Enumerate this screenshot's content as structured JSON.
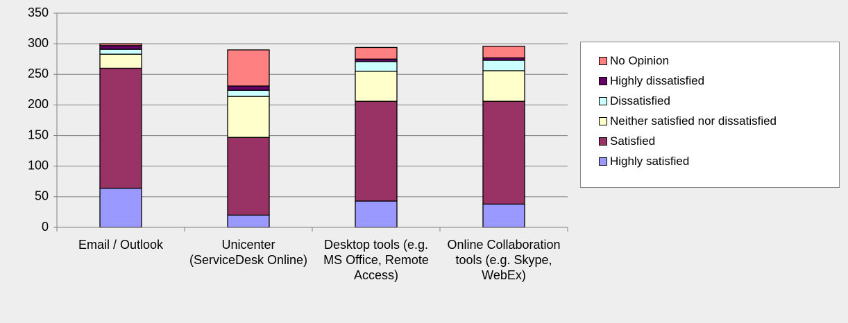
{
  "chart_data": {
    "type": "stacked_bar",
    "categories": [
      "Email / Outlook",
      "Unicenter (ServiceDesk Online)",
      "Desktop tools (e.g. MS Office, Remote Access)",
      "Online Collaboration tools (e.g. Skype, WebEx)"
    ],
    "series": [
      {
        "name": "Highly satisfied",
        "color": "#9999ff",
        "values": [
          64,
          20,
          43,
          38
        ]
      },
      {
        "name": "Satisfied",
        "color": "#993366",
        "values": [
          196,
          127,
          163,
          168
        ]
      },
      {
        "name": "Neither satisfied nor dissatisfied",
        "color": "#ffffcc",
        "values": [
          23,
          67,
          49,
          50
        ]
      },
      {
        "name": "Dissatisfied",
        "color": "#ccffff",
        "values": [
          8,
          10,
          16,
          17
        ]
      },
      {
        "name": "Highly dissatisfied",
        "color": "#660066",
        "values": [
          6,
          7,
          4,
          4
        ]
      },
      {
        "name": "No Opinion",
        "color": "#ff8080",
        "values": [
          3,
          59,
          19,
          19
        ]
      }
    ],
    "ylim": [
      0,
      350
    ],
    "yticks": [
      0,
      50,
      100,
      150,
      200,
      250,
      300,
      350
    ],
    "grid": true,
    "legend": "right"
  }
}
